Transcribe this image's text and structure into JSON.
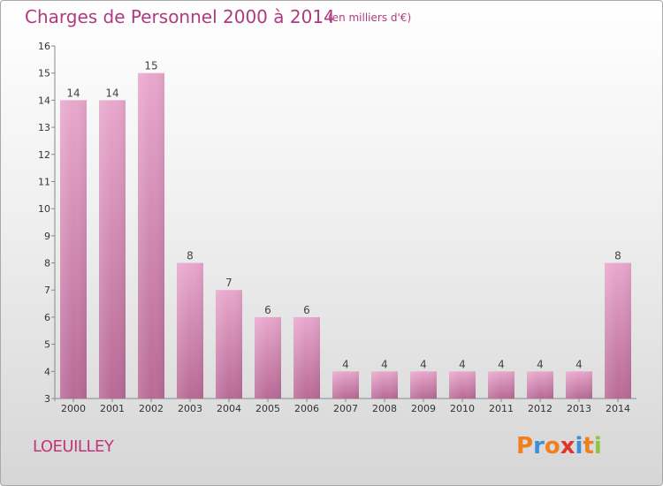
{
  "header": {
    "title": "Charges de Personnel 2000 à 2014",
    "unit": "(en milliers d'€)"
  },
  "footer": {
    "commune": "LOEUILLEY",
    "brand_letters": [
      "P",
      "r",
      "o",
      "x",
      "i",
      "t",
      "i"
    ]
  },
  "colors": {
    "bar_top": "#e8a7cc",
    "bar_bottom": "#b86a96",
    "title": "#b03a80",
    "brand": [
      "#f0801e",
      "#3a8fd6",
      "#f0801e",
      "#e2332c",
      "#3a8fd6",
      "#f0801e",
      "#8cc63e"
    ]
  },
  "chart_data": {
    "type": "bar",
    "title": "Charges de Personnel 2000 à 2014",
    "xlabel": "",
    "ylabel": "",
    "categories": [
      "2000",
      "2001",
      "2002",
      "2003",
      "2004",
      "2005",
      "2006",
      "2007",
      "2008",
      "2009",
      "2010",
      "2011",
      "2012",
      "2013",
      "2014"
    ],
    "values": [
      14,
      14,
      15,
      8,
      7,
      6,
      6,
      4,
      4,
      4,
      4,
      4,
      4,
      4,
      8
    ],
    "ylim": [
      3,
      16
    ],
    "yticks": [
      3,
      4,
      5,
      6,
      7,
      8,
      9,
      10,
      11,
      12,
      13,
      14,
      15,
      16
    ],
    "grid": false,
    "legend": "none"
  }
}
